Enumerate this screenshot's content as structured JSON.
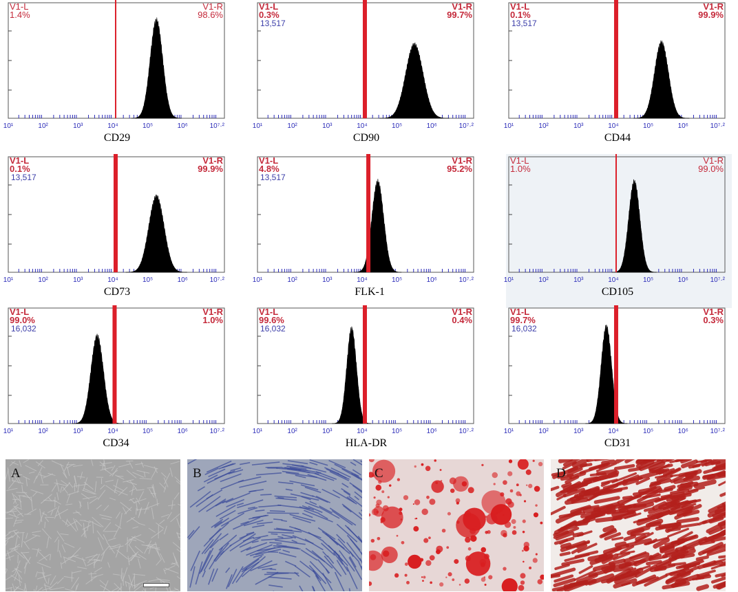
{
  "chart_data": [
    {
      "type": "histogram",
      "marker": "CD29",
      "gate_left_label": "V1-L",
      "gate_right_label": "V1-R",
      "left_pct": "1.4%",
      "right_pct": "98.6%",
      "count": "",
      "x_scale": "log",
      "x_ticks": [
        "10¹",
        "10²",
        "10³",
        "10⁴",
        "10⁵",
        "10⁶",
        "10⁷·²"
      ],
      "x_range": [
        1,
        7.2
      ],
      "gate_x": 4.08,
      "peak_x": 5.25,
      "peak_width": 0.18,
      "peak_height": 0.93,
      "bold": false
    },
    {
      "type": "histogram",
      "marker": "CD90",
      "gate_left_label": "V1-L",
      "gate_right_label": "V1-R",
      "left_pct": "0.3%",
      "right_pct": "99.7%",
      "count": "13,517",
      "x_scale": "log",
      "x_ticks": [
        "10¹",
        "10²",
        "10³",
        "10⁴",
        "10⁵",
        "10⁶",
        "10⁷·²"
      ],
      "x_range": [
        1,
        7.2
      ],
      "gate_x": 4.08,
      "peak_x": 5.5,
      "peak_width": 0.25,
      "peak_height": 0.7,
      "bold": true
    },
    {
      "type": "histogram",
      "marker": "CD44",
      "gate_left_label": "V1-L",
      "gate_right_label": "V1-R",
      "left_pct": "0.1%",
      "right_pct": "99.9%",
      "count": "13,517",
      "x_scale": "log",
      "x_ticks": [
        "10¹",
        "10²",
        "10³",
        "10⁴",
        "10⁵",
        "10⁶",
        "10⁷·²"
      ],
      "x_range": [
        1,
        7.2
      ],
      "gate_x": 4.08,
      "peak_x": 5.38,
      "peak_width": 0.2,
      "peak_height": 0.72,
      "bold": true
    },
    {
      "type": "histogram",
      "marker": "CD73",
      "gate_left_label": "V1-L",
      "gate_right_label": "V1-R",
      "left_pct": "0.1%",
      "right_pct": "99.9%",
      "count": "13,517",
      "x_scale": "log",
      "x_ticks": [
        "10¹",
        "10²",
        "10³",
        "10⁴",
        "10⁵",
        "10⁶",
        "10⁷·²"
      ],
      "x_range": [
        1,
        7.2
      ],
      "gate_x": 4.08,
      "peak_x": 5.25,
      "peak_width": 0.22,
      "peak_height": 0.72,
      "bold": true
    },
    {
      "type": "histogram",
      "marker": "FLK-1",
      "gate_left_label": "V1-L",
      "gate_right_label": "V1-R",
      "left_pct": "4.8%",
      "right_pct": "95.2%",
      "count": "13,517",
      "x_scale": "log",
      "x_ticks": [
        "10¹",
        "10²",
        "10³",
        "10⁴",
        "10⁵",
        "10⁶",
        "10⁷·²"
      ],
      "x_range": [
        1,
        7.2
      ],
      "gate_x": 4.18,
      "peak_x": 4.45,
      "peak_width": 0.17,
      "peak_height": 0.86,
      "bold": true
    },
    {
      "type": "histogram",
      "marker": "CD105",
      "gate_left_label": "V1-L",
      "gate_right_label": "V1-R",
      "left_pct": "1.0%",
      "right_pct": "99.0%",
      "count": "",
      "x_scale": "log",
      "x_ticks": [
        "10¹",
        "10²",
        "10³",
        "10⁴",
        "10⁵",
        "10⁶",
        "10⁷·²"
      ],
      "x_range": [
        1,
        7.2
      ],
      "gate_x": 4.08,
      "peak_x": 4.6,
      "peak_width": 0.16,
      "peak_height": 0.86,
      "bold": false
    },
    {
      "type": "histogram",
      "marker": "CD34",
      "gate_left_label": "V1-L",
      "gate_right_label": "V1-R",
      "left_pct": "99.0%",
      "right_pct": "1.0%",
      "count": "16,032",
      "x_scale": "log",
      "x_ticks": [
        "10¹",
        "10²",
        "10³",
        "10⁴",
        "10⁵",
        "10⁶",
        "10⁷·²"
      ],
      "x_range": [
        1,
        7.2
      ],
      "gate_x": 4.05,
      "peak_x": 3.55,
      "peak_width": 0.18,
      "peak_height": 0.83,
      "bold": true
    },
    {
      "type": "histogram",
      "marker": "HLA-DR",
      "gate_left_label": "V1-L",
      "gate_right_label": "V1-R",
      "left_pct": "99.6%",
      "right_pct": "0.4%",
      "count": "16,032",
      "x_scale": "log",
      "x_ticks": [
        "10¹",
        "10²",
        "10³",
        "10⁴",
        "10⁵",
        "10⁶",
        "10⁷·²"
      ],
      "x_range": [
        1,
        7.2
      ],
      "gate_x": 4.08,
      "peak_x": 3.7,
      "peak_width": 0.14,
      "peak_height": 0.9,
      "bold": true
    },
    {
      "type": "histogram",
      "marker": "CD31",
      "gate_left_label": "V1-L",
      "gate_right_label": "V1-R",
      "left_pct": "99.7%",
      "right_pct": "0.3%",
      "count": "16,032",
      "x_scale": "log",
      "x_ticks": [
        "10¹",
        "10²",
        "10³",
        "10⁴",
        "10⁵",
        "10⁶",
        "10⁷·²"
      ],
      "x_range": [
        1,
        7.2
      ],
      "gate_x": 4.08,
      "peak_x": 3.8,
      "peak_width": 0.15,
      "peak_height": 0.92,
      "bold": true
    }
  ],
  "photos": [
    {
      "label": "A",
      "kind": "phase-contrast",
      "bg": "#a4a4a4",
      "stroke": "#c8c8c8"
    },
    {
      "label": "B",
      "kind": "blue-stain",
      "bg": "#9ea6ba",
      "stroke": "#3a4a9a"
    },
    {
      "label": "C",
      "kind": "red-nodules",
      "bg": "#e7d7d6",
      "stroke": "#d81e20"
    },
    {
      "label": "D",
      "kind": "red-fibrous",
      "bg": "#f1ece9",
      "stroke": "#b3201c"
    }
  ],
  "colors": {
    "gate_red": "#dc1f2a",
    "label_red": "#c4293a",
    "count_blue": "#3a3ca8",
    "axis_blue": "#2a2ab8",
    "histogram": "#000000"
  }
}
